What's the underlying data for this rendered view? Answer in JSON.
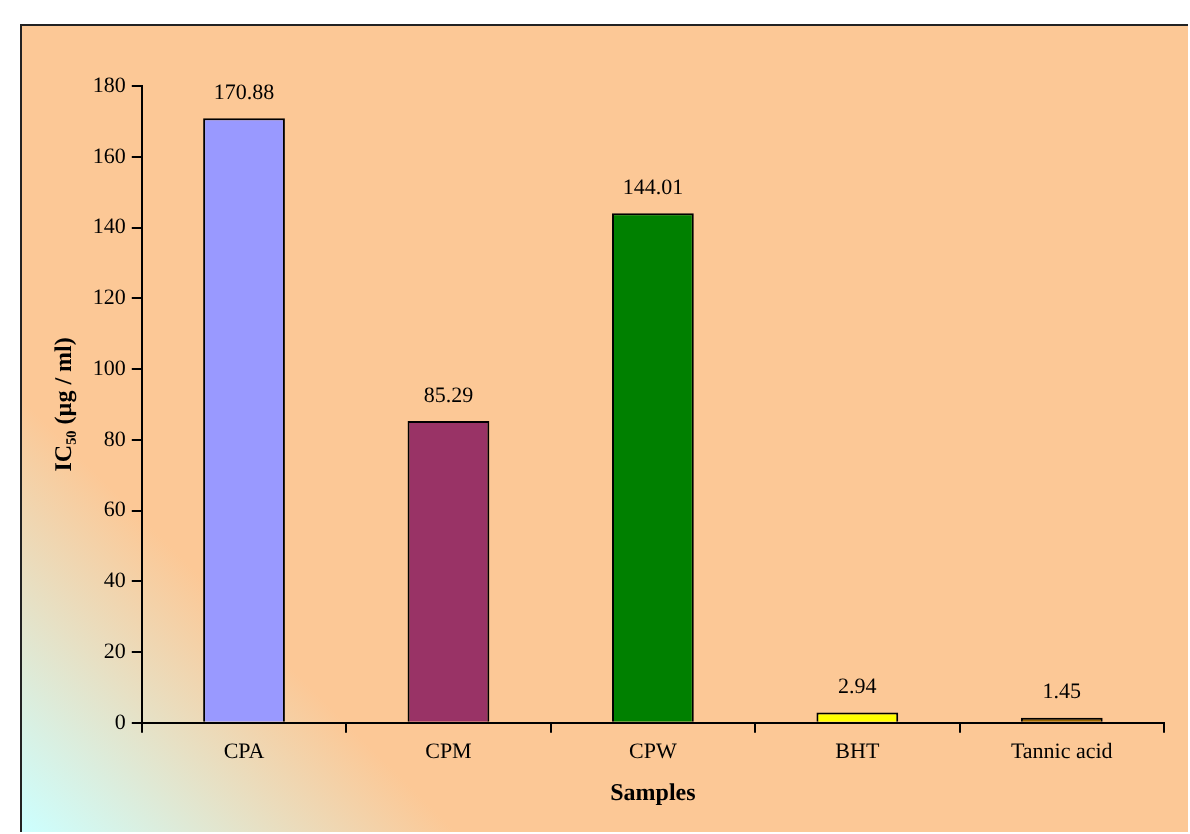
{
  "chart_data": {
    "type": "bar",
    "xlabel": "Samples",
    "ylabel": "IC₅₀ (µg / ml)",
    "categories": [
      "CPA",
      "CPM",
      "CPW",
      "BHT",
      "Tannic acid"
    ],
    "values": [
      170.88,
      85.29,
      144.01,
      2.94,
      1.45
    ],
    "colors": [
      "#9999ff",
      "#993366",
      "#008000",
      "#ffff00",
      "#996600"
    ],
    "ylim": [
      0,
      180
    ],
    "yticks": [
      0,
      20,
      40,
      60,
      80,
      100,
      120,
      140,
      160,
      180
    ],
    "data_labels": true,
    "grid": false,
    "legend": false
  }
}
